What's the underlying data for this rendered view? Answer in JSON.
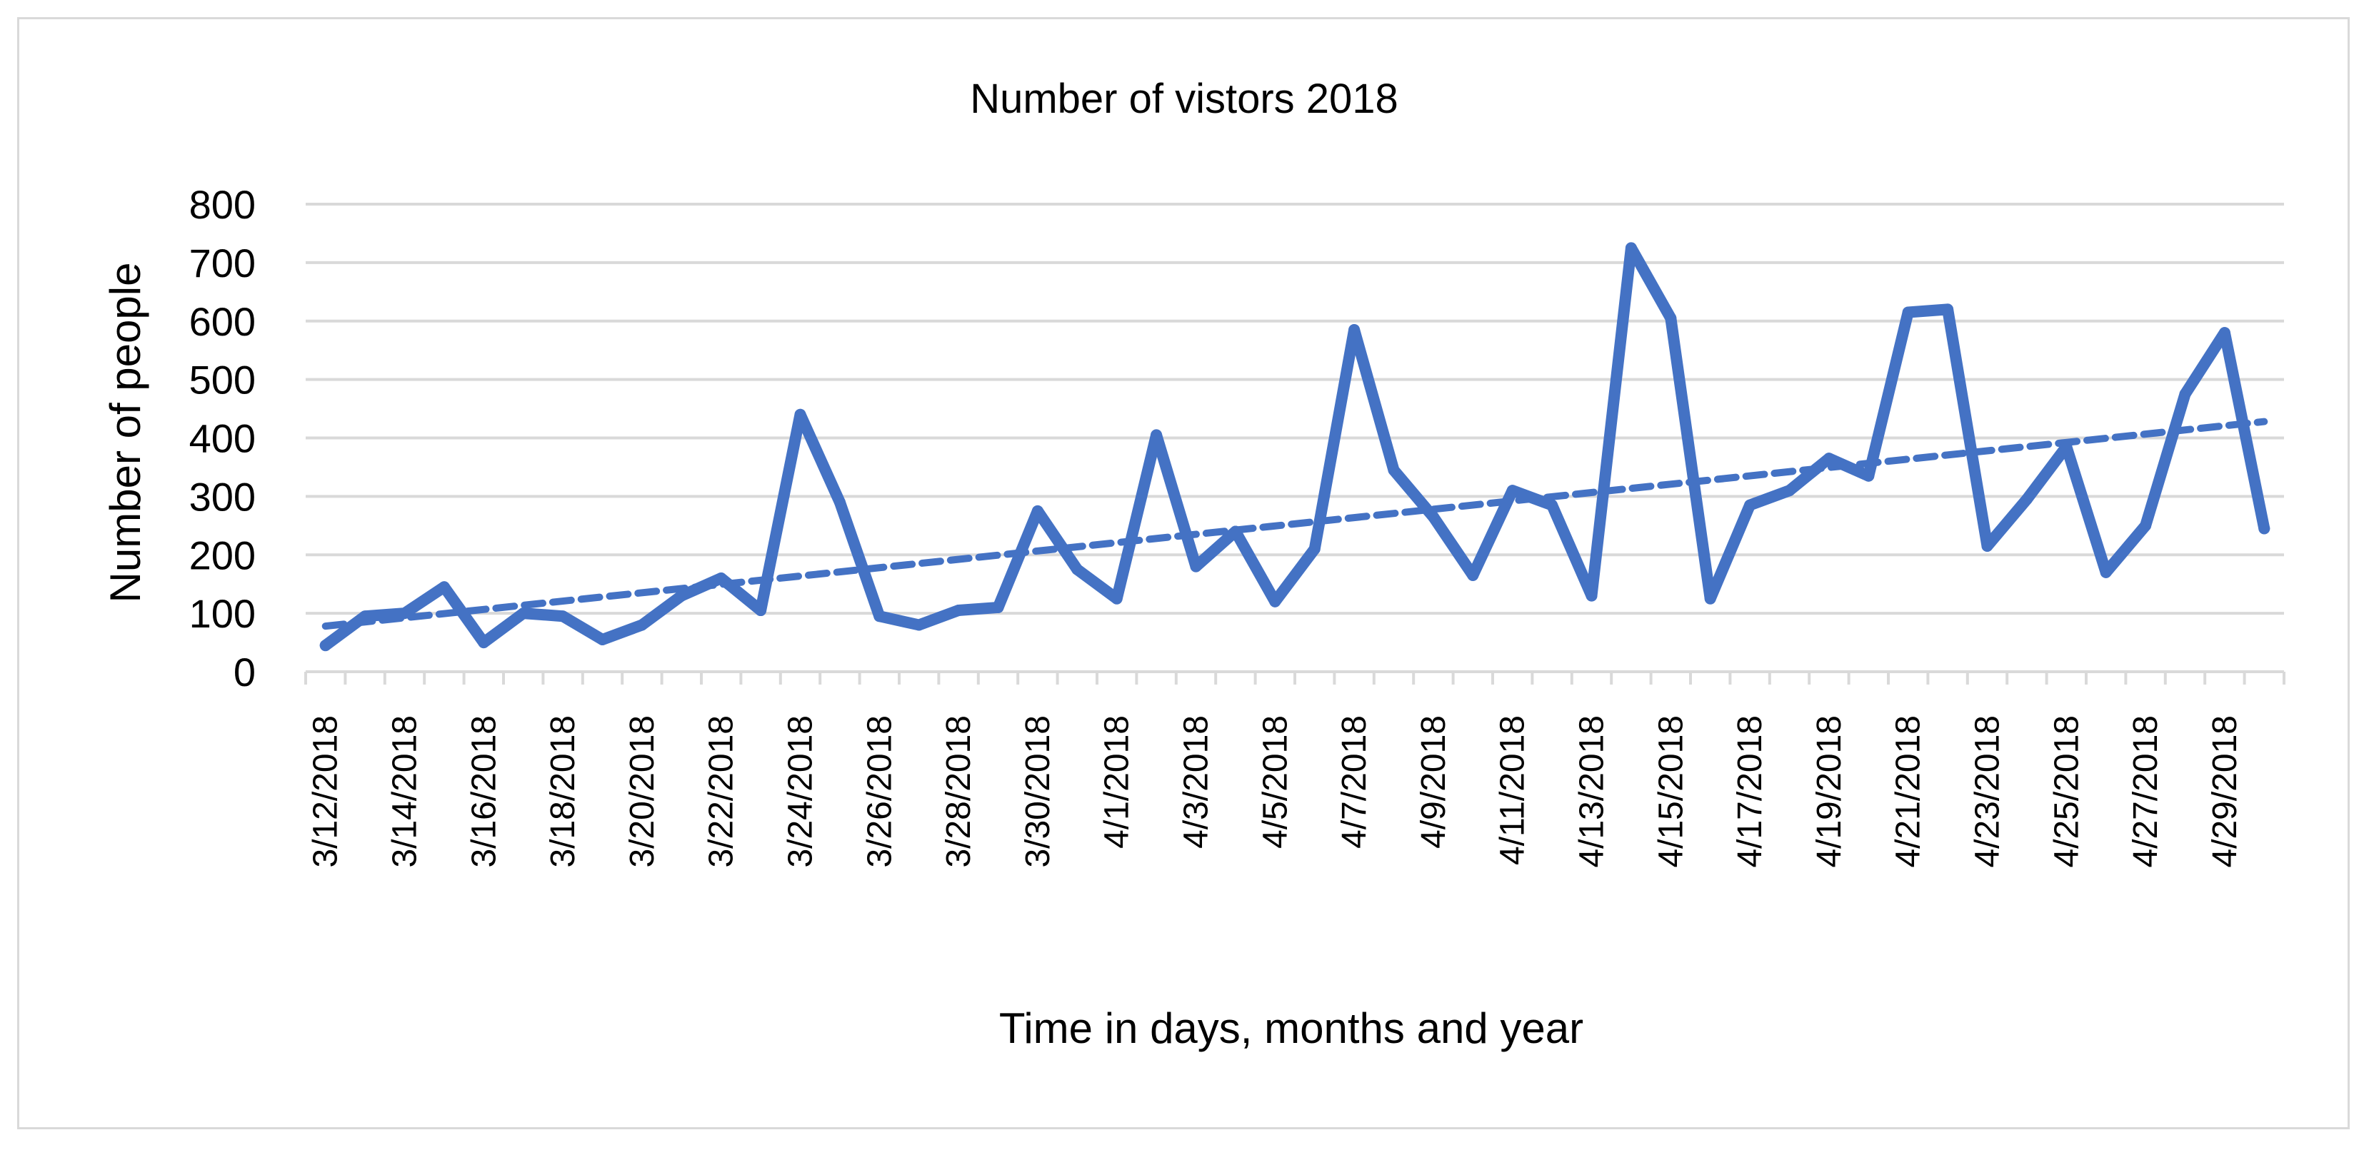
{
  "chart_data": {
    "type": "line",
    "title": "Number of vistors 2018",
    "xlabel": "Time in days, months and year",
    "ylabel": "Number of people",
    "ylim": [
      0,
      800
    ],
    "yticks": [
      0,
      100,
      200,
      300,
      400,
      500,
      600,
      700,
      800
    ],
    "grid": true,
    "legend": "none",
    "x": [
      "3/12/2018",
      "3/13/2018",
      "3/14/2018",
      "3/15/2018",
      "3/16/2018",
      "3/17/2018",
      "3/18/2018",
      "3/19/2018",
      "3/20/2018",
      "3/21/2018",
      "3/22/2018",
      "3/23/2018",
      "3/24/2018",
      "3/25/2018",
      "3/26/2018",
      "3/27/2018",
      "3/28/2018",
      "3/29/2018",
      "3/30/2018",
      "3/31/2018",
      "4/1/2018",
      "4/2/2018",
      "4/3/2018",
      "4/4/2018",
      "4/5/2018",
      "4/6/2018",
      "4/7/2018",
      "4/8/2018",
      "4/9/2018",
      "4/10/2018",
      "4/11/2018",
      "4/12/2018",
      "4/13/2018",
      "4/14/2018",
      "4/15/2018",
      "4/16/2018",
      "4/17/2018",
      "4/18/2018",
      "4/19/2018",
      "4/20/2018",
      "4/21/2018",
      "4/22/2018",
      "4/23/2018",
      "4/24/2018",
      "4/25/2018",
      "4/26/2018",
      "4/27/2018",
      "4/28/2018",
      "4/29/2018",
      "4/30/2018"
    ],
    "xtick_labels": [
      "3/12/2018",
      "3/14/2018",
      "3/16/2018",
      "3/18/2018",
      "3/20/2018",
      "3/22/2018",
      "3/24/2018",
      "3/26/2018",
      "3/28/2018",
      "3/30/2018",
      "4/1/2018",
      "4/3/2018",
      "4/5/2018",
      "4/7/2018",
      "4/9/2018",
      "4/11/2018",
      "4/13/2018",
      "4/15/2018",
      "4/17/2018",
      "4/19/2018",
      "4/21/2018",
      "4/23/2018",
      "4/25/2018",
      "4/27/2018",
      "4/29/2018"
    ],
    "series": [
      {
        "color": "#4472c4",
        "values": [
          45,
          95,
          100,
          145,
          50,
          100,
          95,
          55,
          80,
          130,
          160,
          105,
          440,
          290,
          95,
          80,
          105,
          110,
          275,
          175,
          125,
          405,
          180,
          240,
          120,
          210,
          585,
          345,
          265,
          165,
          310,
          285,
          130,
          725,
          605,
          125,
          285,
          310,
          365,
          335,
          615,
          620,
          215,
          295,
          385,
          170,
          250,
          475,
          580,
          245
        ]
      }
    ],
    "trendline": {
      "type": "linear",
      "style": "dashed",
      "color": "#4472c4",
      "start": 78,
      "end": 428
    }
  }
}
